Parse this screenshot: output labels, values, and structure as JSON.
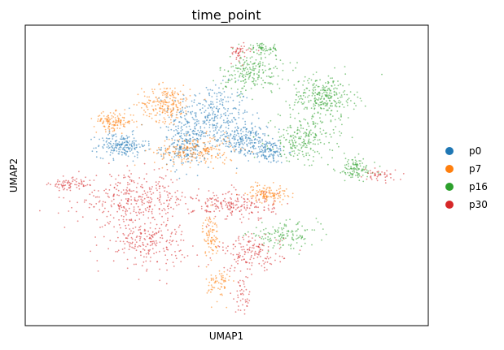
{
  "chart_data": {
    "type": "scatter",
    "title": "time_point",
    "xlabel": "UMAP1",
    "ylabel": "UMAP2",
    "xticks": [],
    "yticks": [],
    "grid": false,
    "legend_placement": "right-outside",
    "series": [
      {
        "name": "p0",
        "color": "#1f77b4",
        "clusters": [
          {
            "cx": 0.46,
            "cy": 0.7,
            "rx": 0.1,
            "ry": 0.1,
            "weight": 1.4
          },
          {
            "cx": 0.4,
            "cy": 0.6,
            "rx": 0.06,
            "ry": 0.07,
            "weight": 1.0
          },
          {
            "cx": 0.54,
            "cy": 0.62,
            "rx": 0.06,
            "ry": 0.05,
            "weight": 0.9
          },
          {
            "cx": 0.24,
            "cy": 0.6,
            "rx": 0.06,
            "ry": 0.04,
            "weight": 0.9
          },
          {
            "cx": 0.6,
            "cy": 0.58,
            "rx": 0.05,
            "ry": 0.04,
            "weight": 0.6
          }
        ]
      },
      {
        "name": "p7",
        "color": "#ff7f0e",
        "clusters": [
          {
            "cx": 0.35,
            "cy": 0.74,
            "rx": 0.06,
            "ry": 0.06,
            "weight": 1.0
          },
          {
            "cx": 0.22,
            "cy": 0.68,
            "rx": 0.05,
            "ry": 0.03,
            "weight": 0.6
          },
          {
            "cx": 0.42,
            "cy": 0.58,
            "rx": 0.1,
            "ry": 0.05,
            "weight": 1.0
          },
          {
            "cx": 0.6,
            "cy": 0.44,
            "rx": 0.05,
            "ry": 0.03,
            "weight": 0.6
          },
          {
            "cx": 0.46,
            "cy": 0.3,
            "rx": 0.02,
            "ry": 0.07,
            "weight": 0.4
          },
          {
            "cx": 0.48,
            "cy": 0.14,
            "rx": 0.03,
            "ry": 0.06,
            "weight": 0.3
          }
        ]
      },
      {
        "name": "p16",
        "color": "#2ca02c",
        "clusters": [
          {
            "cx": 0.56,
            "cy": 0.84,
            "rx": 0.08,
            "ry": 0.06,
            "weight": 0.9
          },
          {
            "cx": 0.74,
            "cy": 0.76,
            "rx": 0.08,
            "ry": 0.07,
            "weight": 1.3
          },
          {
            "cx": 0.69,
            "cy": 0.62,
            "rx": 0.08,
            "ry": 0.07,
            "weight": 1.0
          },
          {
            "cx": 0.82,
            "cy": 0.52,
            "rx": 0.05,
            "ry": 0.04,
            "weight": 0.5
          },
          {
            "cx": 0.64,
            "cy": 0.3,
            "rx": 0.09,
            "ry": 0.04,
            "weight": 0.6
          },
          {
            "cx": 0.59,
            "cy": 0.92,
            "rx": 0.04,
            "ry": 0.02,
            "weight": 0.3
          }
        ]
      },
      {
        "name": "p30",
        "color": "#d62728",
        "clusters": [
          {
            "cx": 0.27,
            "cy": 0.42,
            "rx": 0.14,
            "ry": 0.08,
            "weight": 1.5
          },
          {
            "cx": 0.3,
            "cy": 0.28,
            "rx": 0.1,
            "ry": 0.08,
            "weight": 1.0
          },
          {
            "cx": 0.52,
            "cy": 0.4,
            "rx": 0.1,
            "ry": 0.05,
            "weight": 0.9
          },
          {
            "cx": 0.56,
            "cy": 0.24,
            "rx": 0.08,
            "ry": 0.06,
            "weight": 0.7
          },
          {
            "cx": 0.11,
            "cy": 0.47,
            "rx": 0.05,
            "ry": 0.02,
            "weight": 0.3
          },
          {
            "cx": 0.88,
            "cy": 0.5,
            "rx": 0.04,
            "ry": 0.02,
            "weight": 0.2
          },
          {
            "cx": 0.53,
            "cy": 0.91,
            "rx": 0.03,
            "ry": 0.03,
            "weight": 0.2
          },
          {
            "cx": 0.54,
            "cy": 0.1,
            "rx": 0.02,
            "ry": 0.06,
            "weight": 0.2
          }
        ]
      }
    ]
  }
}
